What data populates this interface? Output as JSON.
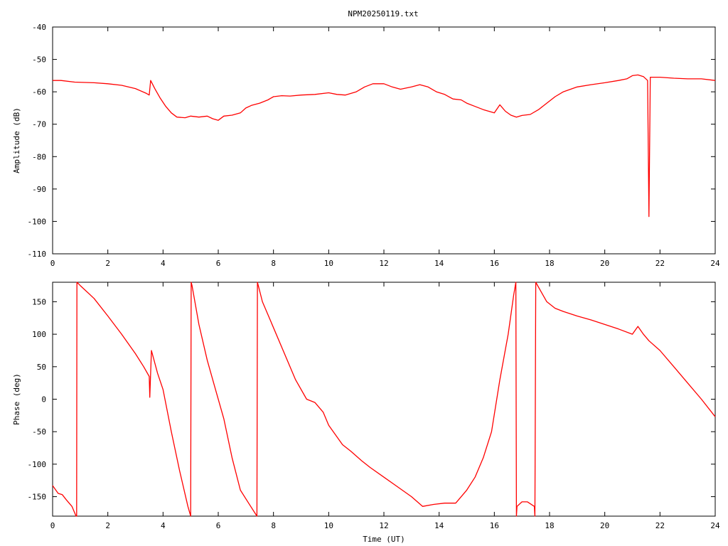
{
  "title": "NPM20250119.txt",
  "chart_data": [
    {
      "type": "line",
      "xlabel": "",
      "ylabel": "Amplitude (dB)",
      "xlim": [
        0,
        24
      ],
      "ylim": [
        -110,
        -40
      ],
      "xticks": [
        0,
        2,
        4,
        6,
        8,
        10,
        12,
        14,
        16,
        18,
        20,
        22,
        24
      ],
      "xtick_labels": [
        "0",
        "2",
        "4",
        "6",
        "8",
        "10",
        "12",
        "14",
        "16",
        "18",
        "20",
        "22",
        "24"
      ],
      "yticks": [
        -110,
        -100,
        -90,
        -80,
        -70,
        -60,
        -50,
        -40
      ],
      "ytick_labels": [
        "-110",
        "-100",
        "-90",
        "-80",
        "-70",
        "-60",
        "-50",
        "-40"
      ],
      "grid": false,
      "color": "#ff0000",
      "series": [
        {
          "x": [
            0,
            0.3,
            0.8,
            1.5,
            2.0,
            2.5,
            3.0,
            3.4,
            3.5,
            3.55,
            3.7,
            3.9,
            4.1,
            4.3,
            4.5,
            4.8,
            5.0,
            5.3,
            5.6,
            5.8,
            6.0,
            6.2,
            6.5,
            6.8,
            7.0,
            7.2,
            7.5,
            7.8,
            8.0,
            8.3,
            8.6,
            9.0,
            9.5,
            10.0,
            10.3,
            10.6,
            11.0,
            11.3,
            11.6,
            12.0,
            12.3,
            12.6,
            13.0,
            13.3,
            13.6,
            13.9,
            14.2,
            14.5,
            14.8,
            15.0,
            15.3,
            15.6,
            16.0,
            16.2,
            16.4,
            16.6,
            16.8,
            17.0,
            17.3,
            17.6,
            17.9,
            18.2,
            18.5,
            19.0,
            19.5,
            20.0,
            20.5,
            20.8,
            21.0,
            21.2,
            21.4,
            21.55,
            21.6,
            21.65,
            22.0,
            22.5,
            23.0,
            23.5,
            24.0
          ],
          "y": [
            -56.5,
            -56.5,
            -57,
            -57.2,
            -57.5,
            -58,
            -59,
            -60.5,
            -61,
            -56.5,
            -59,
            -62,
            -64.5,
            -66.5,
            -67.8,
            -68,
            -67.5,
            -67.8,
            -67.5,
            -68.3,
            -68.8,
            -67.5,
            -67.2,
            -66.5,
            -65,
            -64.2,
            -63.5,
            -62.5,
            -61.5,
            -61.2,
            -61.3,
            -61,
            -60.8,
            -60.3,
            -60.8,
            -61,
            -60,
            -58.5,
            -57.5,
            -57.5,
            -58.5,
            -59.2,
            -58.5,
            -57.8,
            -58.5,
            -60,
            -60.8,
            -62.2,
            -62.5,
            -63.5,
            -64.5,
            -65.5,
            -66.5,
            -64,
            -66,
            -67.2,
            -67.8,
            -67.3,
            -67,
            -65.5,
            -63.5,
            -61.5,
            -60,
            -58.5,
            -57.8,
            -57.2,
            -56.5,
            -56,
            -55,
            -54.8,
            -55.3,
            -56.5,
            -98.5,
            -55.5,
            -55.5,
            -55.8,
            -56,
            -56,
            -56.5
          ]
        }
      ]
    },
    {
      "type": "line",
      "xlabel": "Time (UT)",
      "ylabel": "Phase (deg)",
      "xlim": [
        0,
        24
      ],
      "ylim": [
        -180,
        180
      ],
      "xticks": [
        0,
        2,
        4,
        6,
        8,
        10,
        12,
        14,
        16,
        18,
        20,
        22,
        24
      ],
      "xtick_labels": [
        "0",
        "2",
        "4",
        "6",
        "8",
        "10",
        "12",
        "14",
        "16",
        "18",
        "20",
        "22",
        "24"
      ],
      "yticks": [
        -150,
        -100,
        -50,
        0,
        50,
        100,
        150
      ],
      "ytick_labels": [
        "-150",
        "-100",
        "-50",
        "0",
        "50",
        "100",
        "150"
      ],
      "grid": false,
      "color": "#ff0000",
      "series": [
        {
          "x": [
            0,
            0.2,
            0.35,
            0.5,
            0.7,
            0.85,
            0.87,
            0.88,
            1.0,
            1.5,
            2.0,
            2.5,
            3.0,
            3.3,
            3.5,
            3.52,
            3.58,
            3.8,
            4.0,
            4.3,
            4.6,
            4.9,
            5.0,
            5.02,
            5.05,
            5.3,
            5.6,
            5.9,
            6.2,
            6.5,
            6.8,
            7.1,
            7.4,
            7.42,
            7.45,
            7.6,
            7.9,
            8.3,
            8.8,
            9.2,
            9.5,
            9.8,
            10.0,
            10.5,
            10.8,
            11.2,
            11.5,
            12.0,
            12.5,
            13.0,
            13.4,
            13.8,
            14.2,
            14.6,
            15.0,
            15.3,
            15.6,
            15.9,
            16.2,
            16.5,
            16.7,
            16.78,
            16.8,
            16.82,
            17.0,
            17.2,
            17.45,
            17.47,
            17.5,
            17.7,
            17.9,
            18.2,
            18.5,
            19.0,
            19.5,
            20.0,
            20.5,
            21.0,
            21.2,
            21.4,
            21.6,
            22.0,
            22.5,
            23.0,
            23.5,
            24.0
          ],
          "y": [
            -133,
            -145,
            -147,
            -155,
            -165,
            -180,
            -180,
            180,
            175,
            155,
            128,
            100,
            70,
            50,
            35,
            3,
            75,
            40,
            15,
            -50,
            -110,
            -165,
            -180,
            180,
            175,
            115,
            60,
            15,
            -30,
            -90,
            -140,
            -160,
            -180,
            180,
            175,
            150,
            120,
            80,
            30,
            0,
            -5,
            -20,
            -40,
            -70,
            -80,
            -95,
            -105,
            -120,
            -135,
            -150,
            -165,
            -162,
            -160,
            -160,
            -140,
            -120,
            -90,
            -50,
            30,
            100,
            160,
            180,
            -180,
            -165,
            -158,
            -158,
            -165,
            -180,
            180,
            165,
            150,
            140,
            135,
            128,
            122,
            115,
            108,
            100,
            112,
            100,
            90,
            75,
            50,
            25,
            0,
            -27
          ]
        }
      ]
    }
  ]
}
